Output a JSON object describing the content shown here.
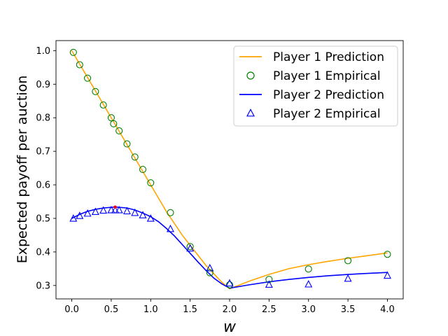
{
  "chart_data": {
    "type": "line",
    "title": "",
    "xlabel": "w",
    "ylabel": "Expected payoff per auction",
    "xlim": [
      -0.2,
      4.2
    ],
    "ylim": [
      0.26,
      1.03
    ],
    "xticks": [
      0.0,
      0.5,
      1.0,
      1.5,
      2.0,
      2.5,
      3.0,
      3.5,
      4.0
    ],
    "xtick_labels": [
      "0.0",
      "0.5",
      "1.0",
      "1.5",
      "2.0",
      "2.5",
      "3.0",
      "3.5",
      "4.0"
    ],
    "yticks": [
      0.3,
      0.4,
      0.5,
      0.6,
      0.7,
      0.8,
      0.9,
      1.0
    ],
    "ytick_labels": [
      "0.3",
      "0.4",
      "0.5",
      "0.6",
      "0.7",
      "0.8",
      "0.9",
      "1.0"
    ],
    "grid": false,
    "legend_position": "top-right",
    "series": [
      {
        "name": "Player 1 Prediction",
        "kind": "line",
        "color": "#ffa500",
        "x": [
          0.0,
          0.1,
          0.2,
          0.3,
          0.4,
          0.5,
          0.6,
          0.7,
          0.8,
          0.9,
          1.0,
          1.1,
          1.2,
          1.3,
          1.4,
          1.5,
          1.6,
          1.7,
          1.8,
          1.9,
          2.0,
          2.25,
          2.5,
          2.75,
          3.0,
          3.25,
          3.5,
          3.75,
          4.0
        ],
        "y": [
          1.0,
          0.96,
          0.92,
          0.88,
          0.84,
          0.8,
          0.76,
          0.72,
          0.68,
          0.64,
          0.6,
          0.56,
          0.52,
          0.485,
          0.45,
          0.42,
          0.39,
          0.36,
          0.335,
          0.31,
          0.29,
          0.313,
          0.333,
          0.35,
          0.362,
          0.372,
          0.381,
          0.389,
          0.397
        ]
      },
      {
        "name": "Player 1 Empirical",
        "kind": "circle",
        "color": "#008000",
        "x": [
          0.02,
          0.1,
          0.2,
          0.3,
          0.4,
          0.5,
          0.53,
          0.6,
          0.7,
          0.8,
          0.9,
          1.0,
          1.25,
          1.5,
          1.75,
          2.0,
          2.5,
          3.0,
          3.5,
          4.0
        ],
        "y": [
          0.995,
          0.958,
          0.918,
          0.878,
          0.838,
          0.8,
          0.782,
          0.761,
          0.722,
          0.683,
          0.646,
          0.606,
          0.517,
          0.416,
          0.338,
          0.302,
          0.318,
          0.349,
          0.374,
          0.393
        ]
      },
      {
        "name": "Player 2 Prediction",
        "kind": "line",
        "color": "#0000ff",
        "x": [
          0.0,
          0.1,
          0.2,
          0.3,
          0.4,
          0.5,
          0.55,
          0.6,
          0.7,
          0.8,
          0.9,
          1.0,
          1.1,
          1.2,
          1.3,
          1.4,
          1.5,
          1.6,
          1.7,
          1.8,
          1.9,
          2.0,
          2.25,
          2.5,
          2.75,
          3.0,
          3.25,
          3.5,
          3.75,
          4.0
        ],
        "y": [
          0.5,
          0.512,
          0.521,
          0.527,
          0.531,
          0.533,
          0.534,
          0.533,
          0.531,
          0.525,
          0.516,
          0.505,
          0.49,
          0.47,
          0.448,
          0.422,
          0.396,
          0.37,
          0.345,
          0.322,
          0.305,
          0.292,
          0.302,
          0.311,
          0.318,
          0.324,
          0.329,
          0.333,
          0.336,
          0.339
        ]
      },
      {
        "name": "Player 2 Empirical",
        "kind": "triangle",
        "color": "#0000ff",
        "x": [
          0.02,
          0.1,
          0.2,
          0.3,
          0.4,
          0.5,
          0.55,
          0.6,
          0.7,
          0.8,
          0.9,
          1.0,
          1.25,
          1.5,
          1.75,
          2.0,
          2.5,
          3.0,
          3.5,
          4.0
        ],
        "y": [
          0.499,
          0.507,
          0.514,
          0.519,
          0.523,
          0.524,
          0.524,
          0.524,
          0.521,
          0.516,
          0.509,
          0.499,
          0.468,
          0.41,
          0.351,
          0.306,
          0.302,
          0.303,
          0.32,
          0.329
        ]
      }
    ],
    "highlight_point": {
      "x": 0.55,
      "y": 0.534,
      "color": "#ff0000"
    }
  }
}
